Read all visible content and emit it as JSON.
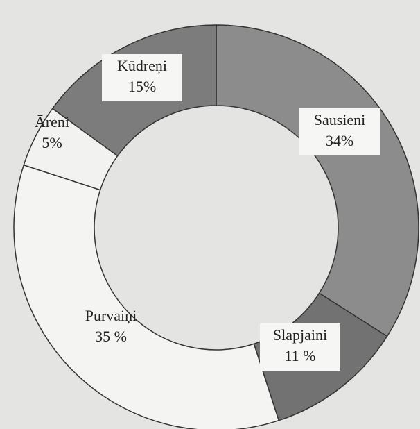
{
  "chart_data": {
    "type": "donut",
    "categories": [
      "Sausieni",
      "Slapjaini",
      "Purvaiņi",
      "Āreni",
      "Kūdreņi"
    ],
    "values": [
      34,
      11,
      35,
      5,
      15
    ],
    "value_labels": [
      "34%",
      "11 %",
      "35 %",
      "5%",
      "15%"
    ],
    "colors": [
      "#8c8c8c",
      "#727272",
      "#f4f4f2",
      "#f2f2f0",
      "#7c7c7c"
    ]
  }
}
